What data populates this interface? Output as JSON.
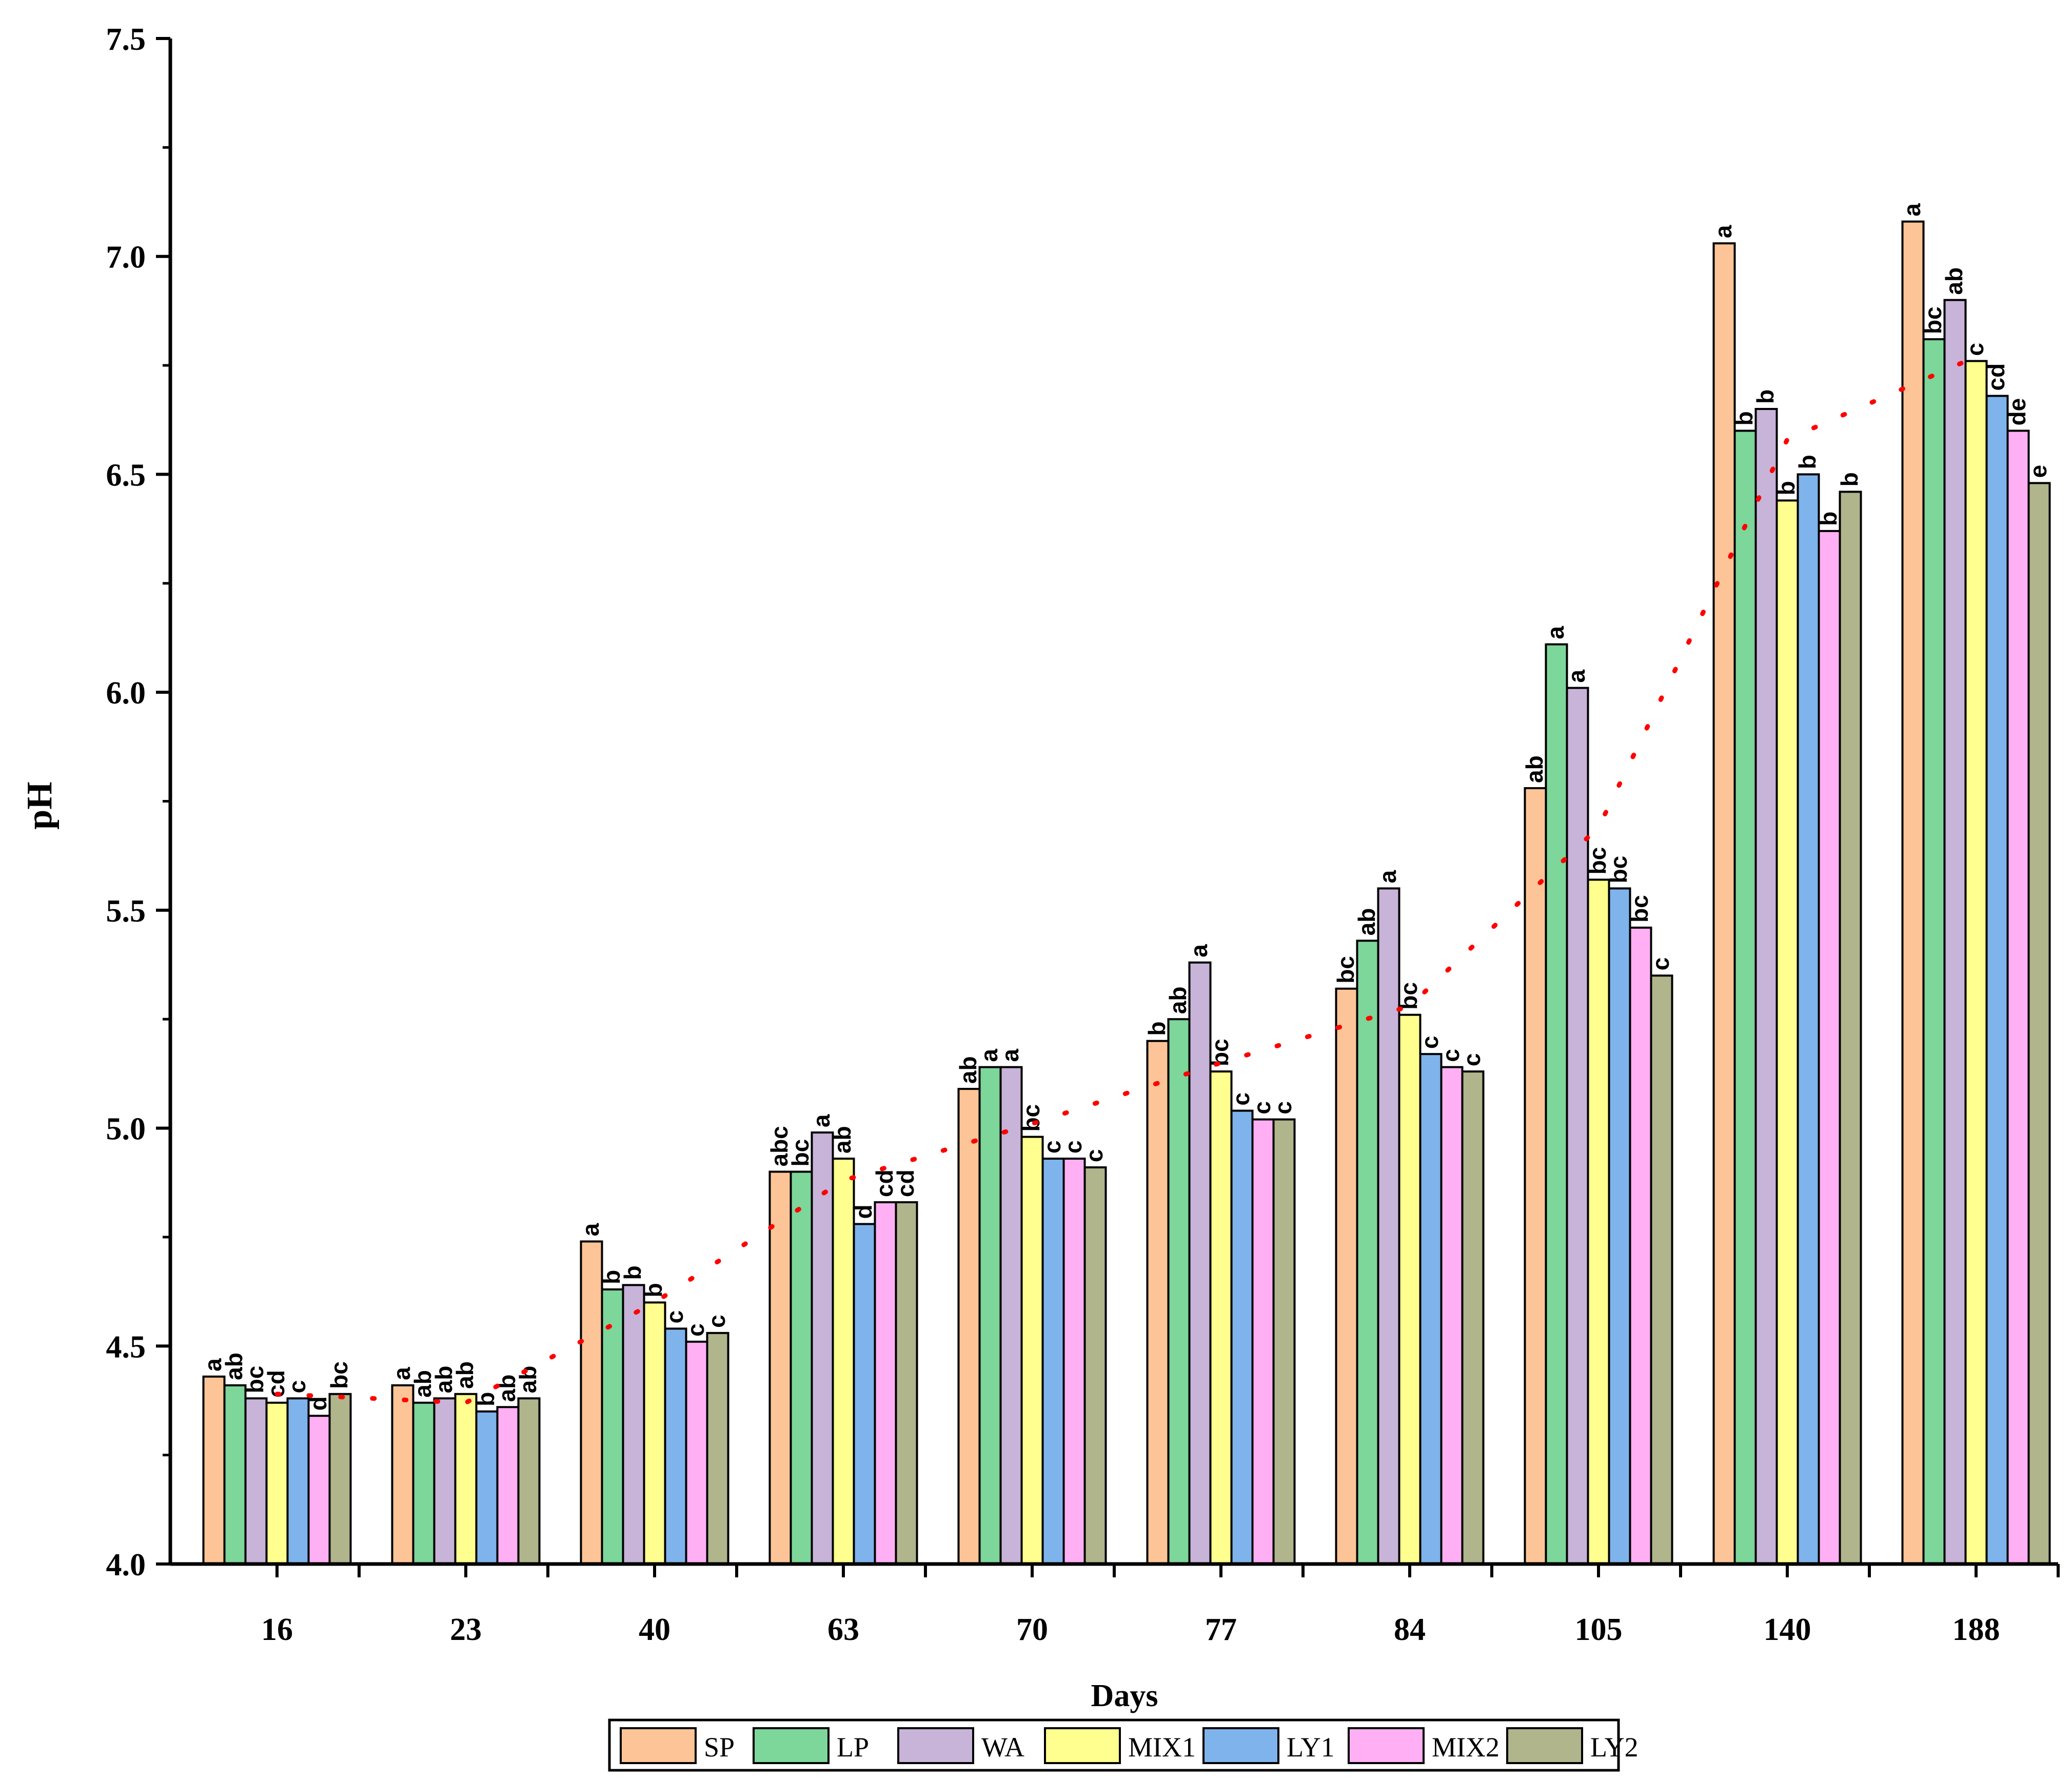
{
  "chart_data": {
    "type": "bar",
    "title": "",
    "xlabel": "Days",
    "ylabel": "pH",
    "ylim": [
      4.0,
      7.5
    ],
    "yticks": [
      "4.0",
      "4.5",
      "5.0",
      "5.5",
      "6.0",
      "6.5",
      "7.0",
      "7.5"
    ],
    "categories": [
      "16",
      "23",
      "40",
      "63",
      "70",
      "77",
      "84",
      "105",
      "140",
      "188"
    ],
    "grid": false,
    "legend_position": "bottom",
    "series": [
      {
        "name": "SP",
        "color": "#fdc597",
        "values": [
          4.43,
          4.41,
          4.74,
          4.9,
          5.09,
          5.2,
          5.32,
          5.78,
          7.03,
          7.08
        ],
        "labels": [
          "a",
          "a",
          "a",
          "abc",
          "ab",
          "b",
          "bc",
          "ab",
          "a",
          "a"
        ]
      },
      {
        "name": "LP",
        "color": "#7dd69a",
        "values": [
          4.41,
          4.37,
          4.63,
          4.9,
          5.14,
          5.25,
          5.43,
          6.11,
          6.6,
          6.81
        ],
        "labels": [
          "ab",
          "ab",
          "b",
          "bc",
          "a",
          "ab",
          "ab",
          "a",
          "b",
          "bc"
        ]
      },
      {
        "name": "WA",
        "color": "#c8b3d9",
        "values": [
          4.38,
          4.38,
          4.64,
          4.99,
          5.14,
          5.38,
          5.55,
          6.01,
          6.65,
          6.9
        ],
        "labels": [
          "bc",
          "ab",
          "b",
          "a",
          "a",
          "a",
          "a",
          "a",
          "b",
          "ab"
        ]
      },
      {
        "name": "MIX1",
        "color": "#ffff8f",
        "values": [
          4.37,
          4.39,
          4.6,
          4.93,
          4.98,
          5.13,
          5.26,
          5.57,
          6.44,
          6.76
        ],
        "labels": [
          "cd",
          "ab",
          "b",
          "ab",
          "bc",
          "bc",
          "bc",
          "bc",
          "b",
          "c"
        ]
      },
      {
        "name": "LY1",
        "color": "#7fb3ec",
        "values": [
          4.38,
          4.35,
          4.54,
          4.78,
          4.93,
          5.04,
          5.17,
          5.55,
          6.5,
          6.68
        ],
        "labels": [
          "c",
          "b",
          "c",
          "d",
          "c",
          "c",
          "c",
          "bc",
          "b",
          "cd"
        ]
      },
      {
        "name": "MIX2",
        "color": "#ffb0f4",
        "values": [
          4.34,
          4.36,
          4.51,
          4.83,
          4.93,
          5.02,
          5.14,
          5.46,
          6.37,
          6.6
        ],
        "labels": [
          "d",
          "ab",
          "c",
          "cd",
          "c",
          "c",
          "c",
          "bc",
          "b",
          "de"
        ]
      },
      {
        "name": "LY2",
        "color": "#b0b58c",
        "values": [
          4.39,
          4.38,
          4.53,
          4.83,
          4.91,
          5.02,
          5.13,
          5.35,
          6.46,
          6.48
        ],
        "labels": [
          "bc",
          "ab",
          "c",
          "cd",
          "c",
          "c",
          "c",
          "c",
          "b",
          "e"
        ]
      }
    ],
    "trend_line": {
      "style": "dotted",
      "color": "#ff0000",
      "values": [
        4.39,
        4.37,
        4.6,
        4.88,
        5.01,
        5.15,
        5.28,
        5.69,
        6.58,
        6.77
      ]
    }
  }
}
